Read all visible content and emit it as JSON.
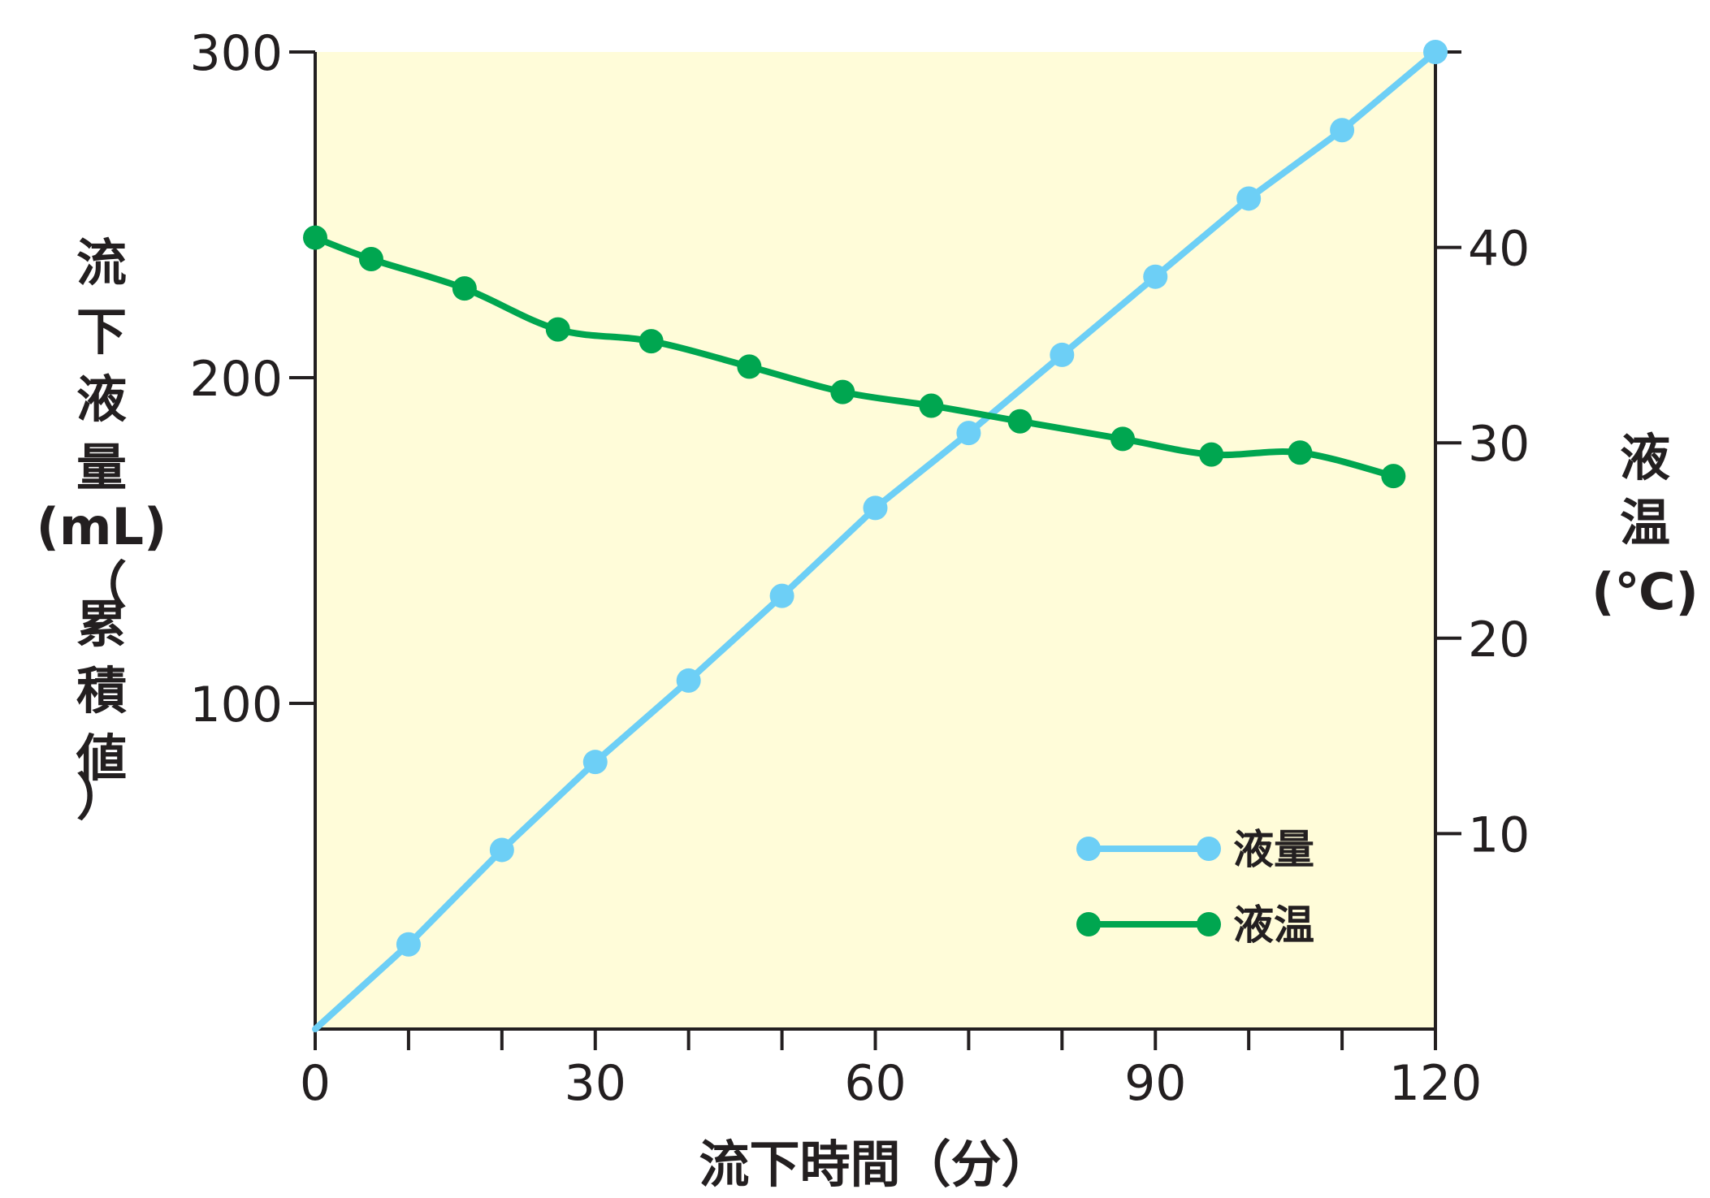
{
  "chart_data": {
    "type": "line",
    "x_axis": {
      "label": "流下時間（分）",
      "range": [
        0,
        120
      ],
      "ticks": [
        0,
        30,
        60,
        90,
        120
      ],
      "minor_step": 10
    },
    "y_axis_left": {
      "label_chars": [
        "流",
        "下",
        "液",
        "量",
        "(mL)",
        "（",
        "累",
        "積",
        "値",
        "）"
      ],
      "range": [
        0,
        300
      ],
      "ticks": [
        100,
        200,
        300
      ]
    },
    "y_axis_right": {
      "label_chars": [
        "液",
        "温",
        "(℃)"
      ],
      "range": [
        0,
        50
      ],
      "ticks": [
        10,
        20,
        30,
        40
      ]
    },
    "grid": false,
    "background": "#fffcd9",
    "legend": {
      "position": "bottom-right"
    },
    "series": [
      {
        "name": "液量",
        "axis": "left",
        "color": "#6dcff6",
        "x": [
          0,
          10,
          20,
          30,
          40,
          50,
          60,
          70,
          80,
          90,
          100,
          110,
          120
        ],
        "y": [
          0,
          26,
          55,
          82,
          107,
          133,
          160,
          183,
          207,
          231,
          255,
          276,
          300
        ],
        "marker_on_first": false
      },
      {
        "name": "液温",
        "axis": "right",
        "color": "#00a650",
        "x": [
          0,
          6,
          16,
          26,
          36,
          46.5,
          56.5,
          66,
          75.5,
          86.5,
          96,
          105.5,
          115.5
        ],
        "y": [
          40.5,
          39.4,
          37.9,
          35.8,
          35.2,
          33.9,
          32.6,
          31.9,
          31.1,
          30.2,
          29.4,
          29.5,
          28.3
        ],
        "smooth": true
      }
    ]
  }
}
